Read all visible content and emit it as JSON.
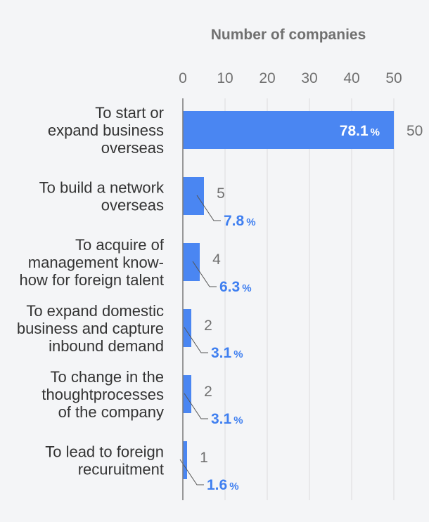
{
  "chart_data": {
    "type": "bar",
    "orientation": "horizontal",
    "title": "",
    "xlabel": "Number of companies",
    "ylabel": "",
    "xlim": [
      0,
      50
    ],
    "x_ticks": [
      0,
      10,
      20,
      30,
      40,
      50
    ],
    "grid": true,
    "bar_color": "#4a86f2",
    "percent_color": "#3f7ff0",
    "categories": [
      [
        "To start or",
        "expand business",
        "overseas"
      ],
      [
        "To build a network",
        "overseas"
      ],
      [
        "To acquire of",
        "management know-",
        "how for foreign talent"
      ],
      [
        "To expand domestic",
        "business and capture",
        "inbound demand"
      ],
      [
        "To change in the",
        "thoughtprocesses",
        "of the company"
      ],
      [
        "To lead to foreign",
        "recuruitment"
      ]
    ],
    "values": [
      50,
      5,
      4,
      2,
      2,
      1
    ],
    "percents": [
      "78.1",
      "7.8",
      "6.3",
      "3.1",
      "3.1",
      "1.6"
    ],
    "percent_unit": "%"
  }
}
